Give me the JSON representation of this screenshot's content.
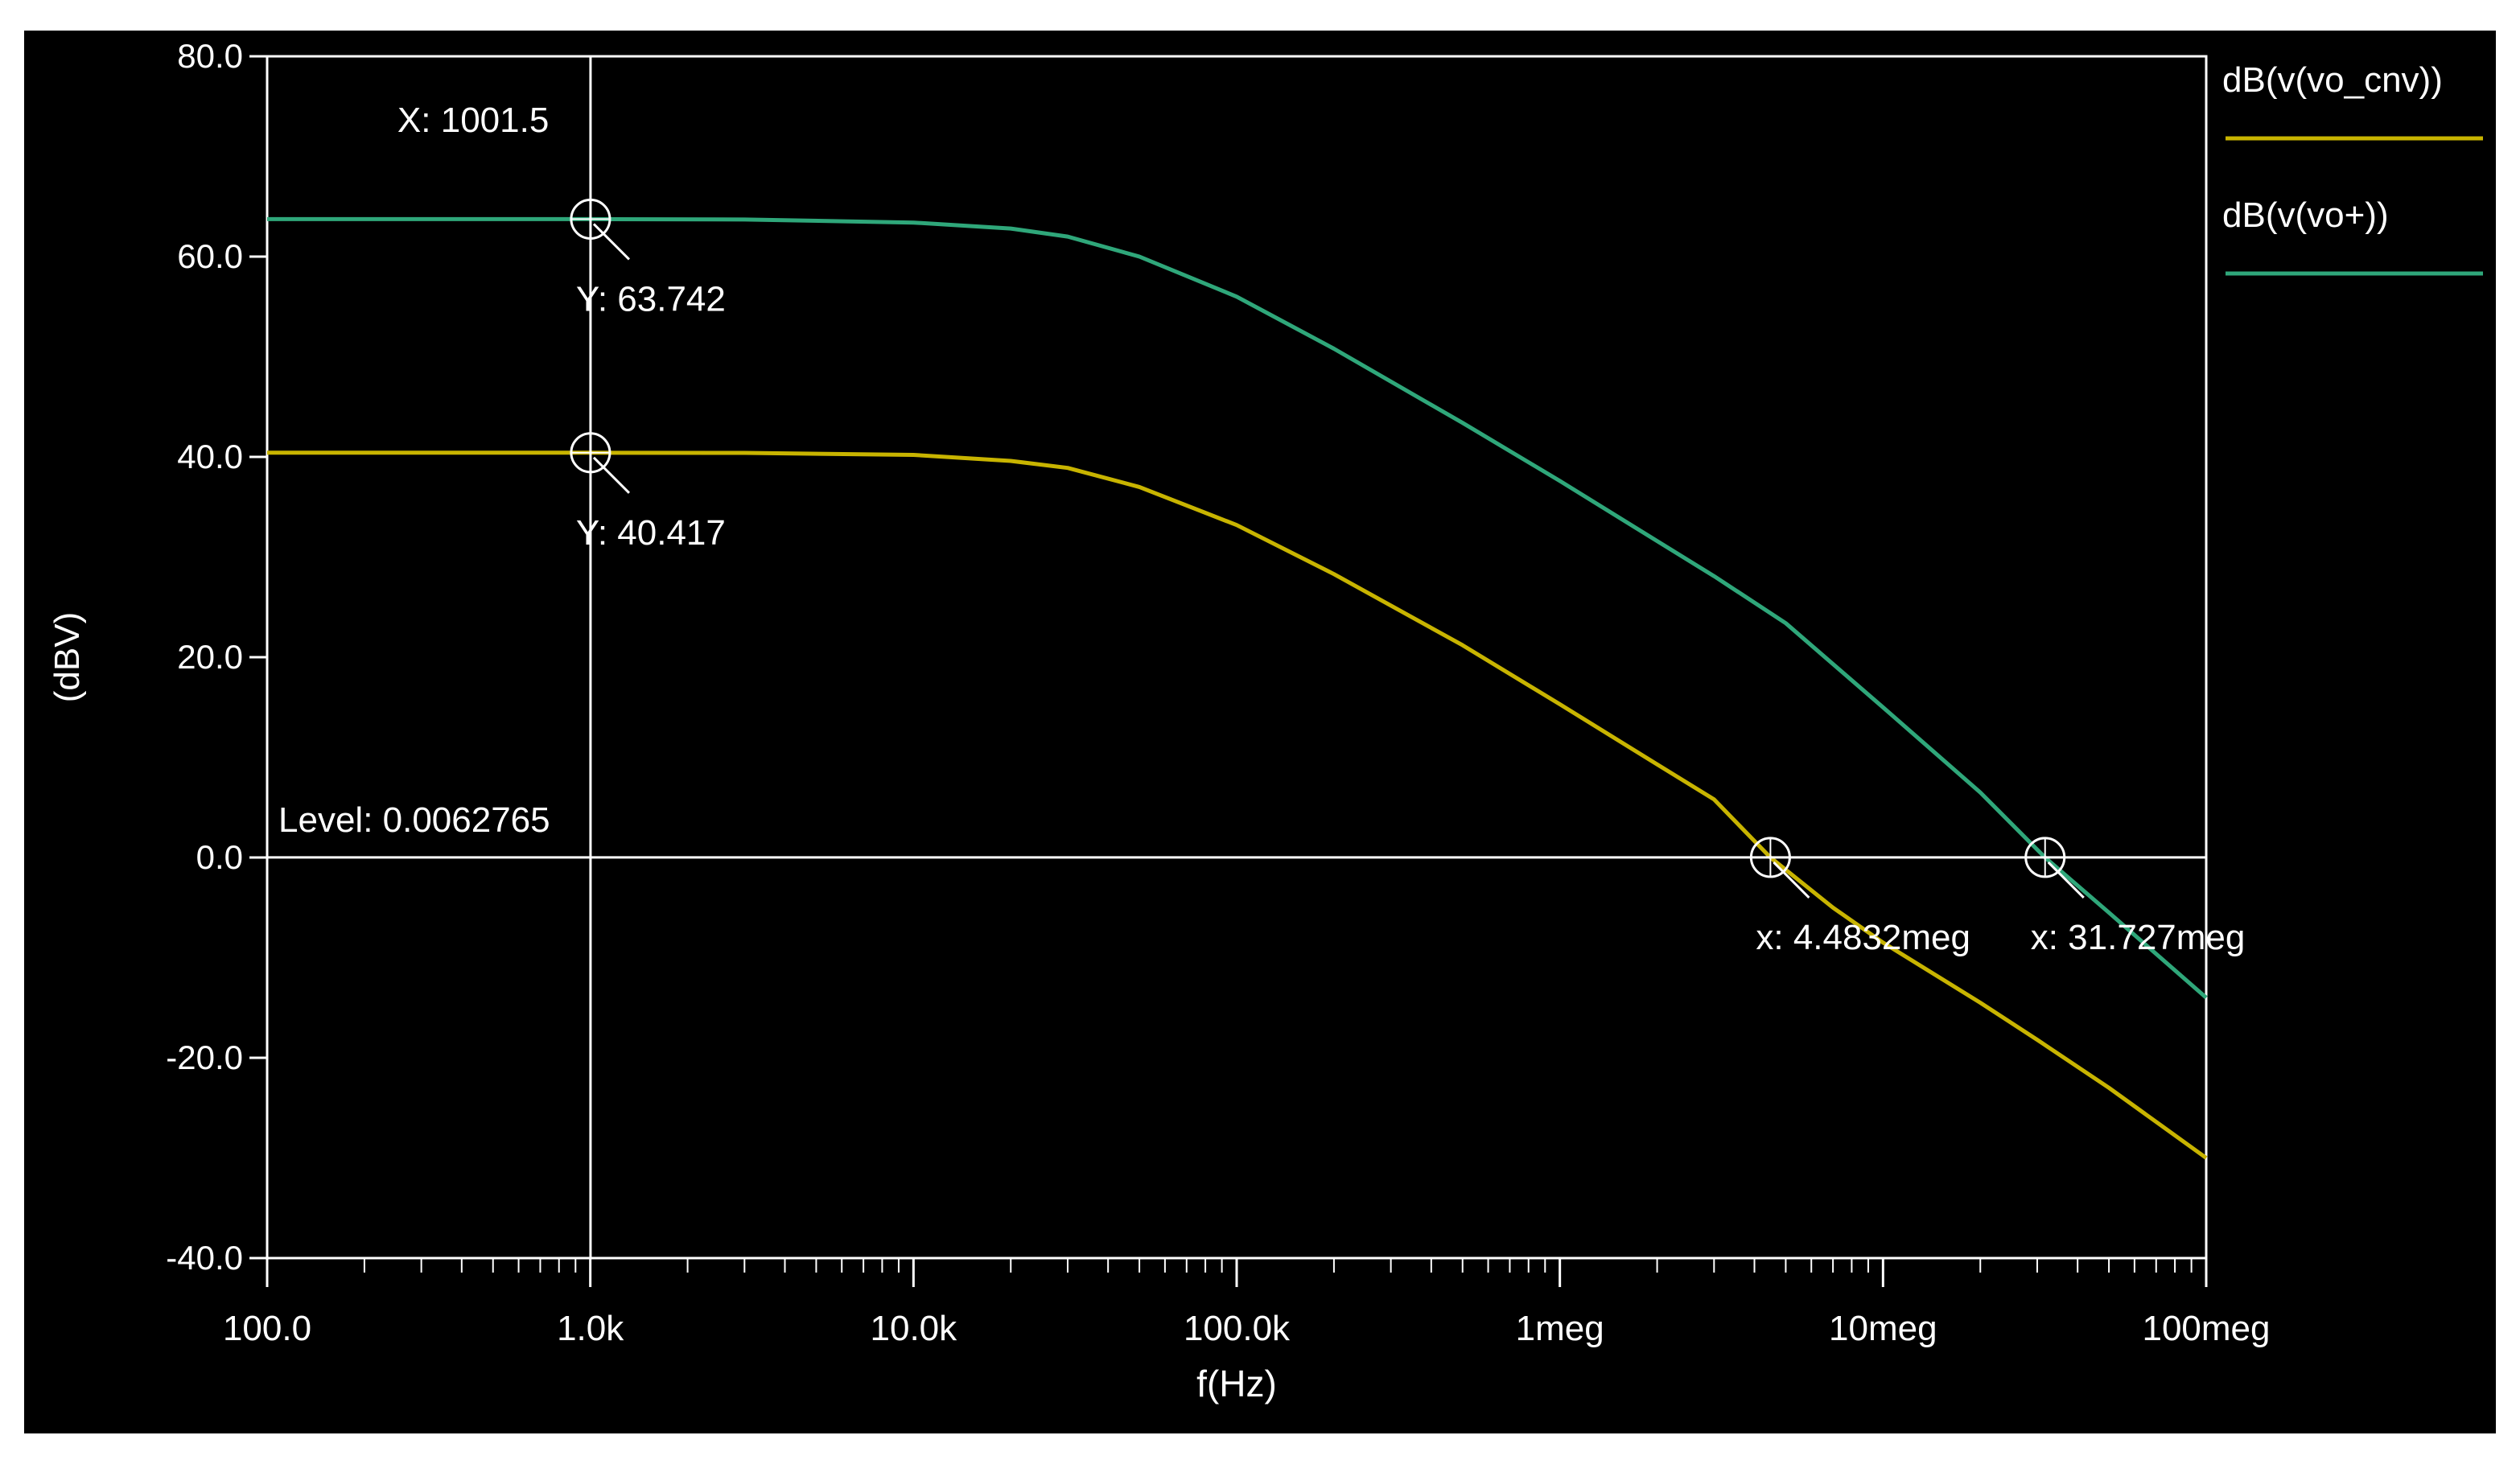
{
  "chart_data": {
    "type": "line",
    "background": "#000000",
    "axis_color": "#ffffff",
    "xscale": "log",
    "xlabel": "f(Hz)",
    "ylabel": "(dBV)",
    "xlim": [
      100,
      100000000
    ],
    "ylim": [
      -40,
      80
    ],
    "x_ticks": [
      {
        "value": 100,
        "label": "100.0"
      },
      {
        "value": 1000,
        "label": "1.0k"
      },
      {
        "value": 10000,
        "label": "10.0k"
      },
      {
        "value": 100000,
        "label": "100.0k"
      },
      {
        "value": 1000000,
        "label": "1meg"
      },
      {
        "value": 10000000,
        "label": "10meg"
      },
      {
        "value": 100000000,
        "label": "100meg"
      }
    ],
    "y_ticks": [
      {
        "value": 80,
        "label": "80.0"
      },
      {
        "value": 60,
        "label": "60.0"
      },
      {
        "value": 40,
        "label": "40.0"
      },
      {
        "value": 20,
        "label": "20.0"
      },
      {
        "value": 0,
        "label": "0.0"
      },
      {
        "value": -20,
        "label": "-20.0"
      },
      {
        "value": -40,
        "label": "-40.0"
      }
    ],
    "legend_position": "right",
    "series": [
      {
        "name": "dB(v(vo_cnv))",
        "color": "#c8b400",
        "x": [
          100,
          1000,
          3000,
          10000,
          20000,
          30000,
          50000,
          100000,
          200000,
          500000,
          1000000,
          2000000,
          3000000,
          4483200,
          7000000,
          10000000,
          20000000,
          30000000,
          50000000,
          100000000
        ],
        "y": [
          40.417,
          40.417,
          40.4,
          40.2,
          39.6,
          38.9,
          37.0,
          33.2,
          28.3,
          21.2,
          15.3,
          9.3,
          5.8,
          0.0,
          -5.0,
          -8.5,
          -14.5,
          -18.2,
          -23.0,
          -30.0
        ]
      },
      {
        "name": "dB(v(vo+))",
        "color": "#2fa77a",
        "x": [
          100,
          1000,
          3000,
          10000,
          20000,
          30000,
          50000,
          100000,
          200000,
          500000,
          1000000,
          2000000,
          3000000,
          5000000,
          10000000,
          20000000,
          31727000,
          50000000,
          100000000
        ],
        "y": [
          63.742,
          63.742,
          63.7,
          63.4,
          62.8,
          62.0,
          60.0,
          56.0,
          50.8,
          43.4,
          37.6,
          31.6,
          28.1,
          23.4,
          15.0,
          6.5,
          0.0,
          -5.5,
          -14.0
        ]
      }
    ],
    "cursors": [
      {
        "type": "vertical",
        "x": 1001.5,
        "label": "X: 1001.5"
      },
      {
        "type": "horizontal",
        "y": 0.0062765,
        "label": "Level: 0.0062765"
      }
    ],
    "markers": [
      {
        "x": 1001.5,
        "y": 63.742,
        "label": "Y: 63.742",
        "label_side": "below"
      },
      {
        "x": 1001.5,
        "y": 40.417,
        "label": "Y: 40.417",
        "label_side": "below"
      },
      {
        "x": 4483200,
        "y": 0.0062765,
        "label": "x: 4.4832meg",
        "label_side": "below"
      },
      {
        "x": 31727000,
        "y": 0.0062765,
        "label": "x: 31.727meg",
        "label_side": "below"
      }
    ]
  }
}
